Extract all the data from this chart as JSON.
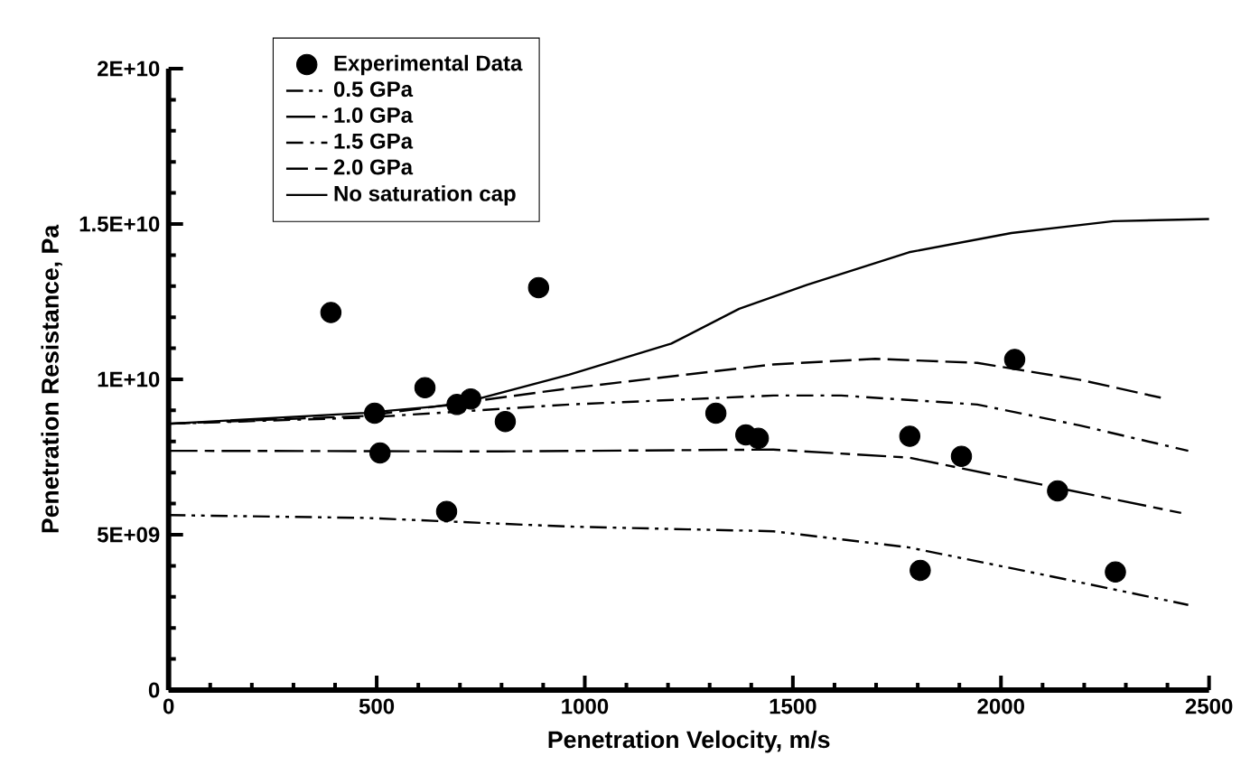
{
  "chart_data": {
    "type": "line",
    "xlabel": "Penetration Velocity, m/s",
    "ylabel": "Penetration Resistance, Pa",
    "xlim": [
      0,
      2500
    ],
    "ylim": [
      0,
      20000000000
    ],
    "xticks": [
      0,
      500,
      1000,
      1500,
      2000,
      2500
    ],
    "yticks": [
      {
        "value": 0,
        "label": "0"
      },
      {
        "value": 5000000000,
        "label": "5E+09"
      },
      {
        "value": 10000000000,
        "label": "1E+10"
      },
      {
        "value": 15000000000,
        "label": "1.5E+10"
      },
      {
        "value": 20000000000,
        "label": "2E+10"
      }
    ],
    "legend": "top left",
    "grid": false,
    "marker": "circle",
    "series": [
      {
        "name": "Experimental Data",
        "type": "scatter",
        "color": "#000000",
        "x": [
          390,
          889,
          495,
          508,
          616,
          693,
          726,
          668,
          809,
          1315,
          1387,
          1417,
          1781,
          1806,
          1905,
          2033,
          2136,
          2275
        ],
        "values": [
          12150000000,
          12950000000,
          8910000000,
          7630000000,
          9730000000,
          9190000000,
          9370000000,
          5750000000,
          8640000000,
          8910000000,
          8210000000,
          8100000000,
          8170000000,
          3850000000,
          7520000000,
          10640000000,
          6410000000,
          3800000000
        ]
      },
      {
        "name": "0.5 GPa",
        "type": "line",
        "marker": "none",
        "line_style": "dashdotdotted",
        "color": "#000000",
        "x": [
          0,
          472,
          962,
          1453,
          1779,
          2106,
          2450
        ],
        "values": [
          5630000000,
          5540000000,
          5260000000,
          5110000000,
          4590000000,
          3700000000,
          2740000000
        ]
      },
      {
        "name": "1.0 GPa",
        "type": "line",
        "marker": "none",
        "line_style": "longdashed",
        "color": "#000000",
        "x": [
          0,
          799,
          1453,
          1779,
          2106,
          2433
        ],
        "values": [
          7700000000,
          7680000000,
          7740000000,
          7480000000,
          6590000000,
          5700000000
        ]
      },
      {
        "name": "1.5 GPa",
        "type": "line",
        "marker": "none",
        "line_style": "dashdotted",
        "color": "#000000",
        "x": [
          0,
          472,
          962,
          1453,
          1616,
          1943,
          2188,
          2450
        ],
        "values": [
          8570000000,
          8770000000,
          9190000000,
          9480000000,
          9480000000,
          9190000000,
          8520000000,
          7700000000
        ]
      },
      {
        "name": "2.0 GPa",
        "type": "line",
        "marker": "none",
        "line_style": "dashed",
        "color": "#000000",
        "x": [
          0,
          472,
          962,
          1453,
          1698,
          1943,
          2188,
          2384
        ],
        "values": [
          8570000000,
          8820000000,
          9710000000,
          10480000000,
          10660000000,
          10530000000,
          9990000000,
          9410000000
        ]
      },
      {
        "name": "No saturation cap",
        "type": "line",
        "marker": "none",
        "line_style": "solid",
        "color": "#000000",
        "x": [
          0,
          472,
          693,
          962,
          1208,
          1371,
          1534,
          1779,
          2025,
          2270,
          2500
        ],
        "values": [
          8570000000,
          8920000000,
          9190000000,
          10150000000,
          11150000000,
          12270000000,
          13040000000,
          14090000000,
          14710000000,
          15090000000,
          15160000000
        ]
      }
    ]
  }
}
